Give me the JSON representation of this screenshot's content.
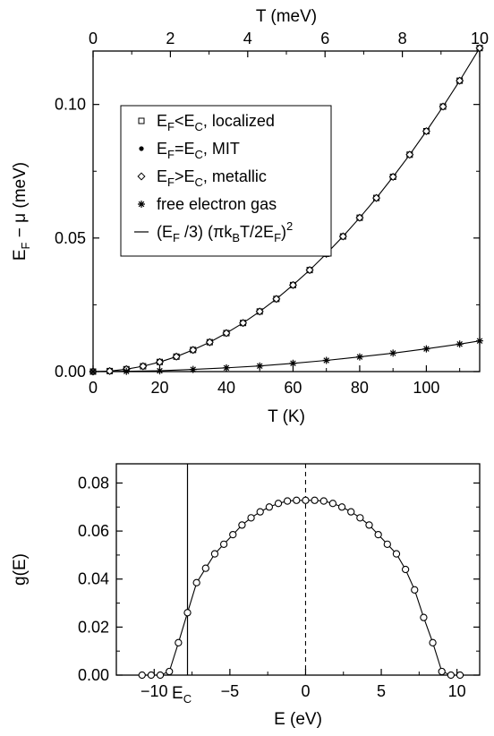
{
  "chart_data": [
    {
      "type": "line",
      "xlabel": "T (K)",
      "xlabel_top": "T (meV)",
      "ylabel": "E_F − μ (meV)",
      "xlim": [
        0,
        116
      ],
      "xlim_top": [
        0,
        10
      ],
      "ylim": [
        0,
        0.12
      ],
      "x_ticks": [
        "0",
        "20",
        "40",
        "60",
        "80",
        "100"
      ],
      "x_ticks_top": [
        "0",
        "2",
        "4",
        "6",
        "8",
        "10"
      ],
      "y_ticks": [
        "0.00",
        "0.05",
        "0.10"
      ],
      "legend_position": "top-left",
      "legend": [
        {
          "label": "E_F<E_C, localized",
          "marker": "open-square"
        },
        {
          "label": "E_F=E_C, MIT",
          "marker": "filled-dot"
        },
        {
          "label": "E_F>E_C, metallic",
          "marker": "open-diamond"
        },
        {
          "label": "free electron gas",
          "marker": "asterisk"
        },
        {
          "label": "(E_F /3) (πk_BT/2E_F)^2",
          "marker": "line"
        }
      ],
      "series": [
        {
          "name": "E_F<E_C, localized",
          "marker": "open-square",
          "x": [
            0,
            5,
            10,
            15,
            20,
            25,
            30,
            35,
            40,
            45,
            50,
            55,
            60,
            65,
            70,
            75,
            80,
            85,
            90,
            95,
            100,
            105,
            110,
            116
          ],
          "y": [
            0,
            0.0002,
            0.0009,
            0.002,
            0.0036,
            0.0056,
            0.0081,
            0.011,
            0.0144,
            0.0182,
            0.0225,
            0.0272,
            0.0324,
            0.038,
            0.0441,
            0.0506,
            0.0576,
            0.065,
            0.0729,
            0.0812,
            0.09,
            0.0992,
            0.1089,
            0.1211
          ]
        },
        {
          "name": "E_F=E_C, MIT",
          "marker": "filled-dot",
          "x": [
            0,
            5,
            10,
            15,
            20,
            25,
            30,
            35,
            40,
            45,
            50,
            55,
            60,
            65,
            70,
            75,
            80,
            85,
            90,
            95,
            100,
            105,
            110,
            116
          ],
          "y": [
            0,
            0.0002,
            0.0009,
            0.002,
            0.0036,
            0.0056,
            0.0081,
            0.011,
            0.0144,
            0.0182,
            0.0225,
            0.0272,
            0.0324,
            0.038,
            0.0441,
            0.0506,
            0.0576,
            0.065,
            0.0729,
            0.0812,
            0.09,
            0.0992,
            0.1089,
            0.1211
          ]
        },
        {
          "name": "E_F>E_C, metallic",
          "marker": "open-diamond",
          "x": [
            0,
            5,
            10,
            15,
            20,
            25,
            30,
            35,
            40,
            45,
            50,
            55,
            60,
            65,
            70,
            75,
            80,
            85,
            90,
            95,
            100,
            105,
            110,
            116
          ],
          "y": [
            0,
            0.0002,
            0.0009,
            0.002,
            0.0036,
            0.0056,
            0.0081,
            0.011,
            0.0144,
            0.0182,
            0.0225,
            0.0272,
            0.0324,
            0.038,
            0.0441,
            0.0506,
            0.0576,
            0.065,
            0.0729,
            0.0812,
            0.09,
            0.0992,
            0.1089,
            0.1211
          ]
        },
        {
          "name": "free electron gas",
          "marker": "asterisk",
          "x": [
            0,
            10,
            20,
            30,
            40,
            50,
            60,
            70,
            80,
            90,
            100,
            110,
            116
          ],
          "y": [
            0,
            0.0001,
            0.0003,
            0.0008,
            0.0014,
            0.0021,
            0.0031,
            0.0042,
            0.0055,
            0.0069,
            0.0085,
            0.0103,
            0.0115
          ]
        },
        {
          "name": "(E_F /3) (πk_BT/2E_F)^2",
          "marker": "line",
          "x": [
            0,
            10,
            20,
            30,
            40,
            50,
            60,
            70,
            80,
            90,
            100,
            110,
            116
          ],
          "y": [
            0,
            0.0001,
            0.0003,
            0.0008,
            0.0014,
            0.0021,
            0.0031,
            0.0042,
            0.0055,
            0.0069,
            0.0085,
            0.0103,
            0.0115
          ]
        }
      ]
    },
    {
      "type": "line",
      "xlabel": "E (eV)",
      "ylabel": "g(E)",
      "xlim": [
        -12.5,
        11.5
      ],
      "ylim": [
        0,
        0.088
      ],
      "x_ticks": [
        "−10",
        "−5",
        "0",
        "5",
        "10"
      ],
      "y_ticks": [
        "0.00",
        "0.02",
        "0.04",
        "0.06",
        "0.08"
      ],
      "vline_solid_x": -7.8,
      "vline_solid_label": "E_C",
      "vline_dashed_x": 0,
      "series": [
        {
          "name": "g(E)",
          "marker": "open-circle",
          "x": [
            -10.8,
            -10.2,
            -9.6,
            -9.0,
            -8.4,
            -7.8,
            -7.2,
            -6.6,
            -6.0,
            -5.4,
            -4.8,
            -4.2,
            -3.6,
            -3.0,
            -2.4,
            -1.8,
            -1.2,
            -0.6,
            0.0,
            0.6,
            1.2,
            1.8,
            2.4,
            3.0,
            3.6,
            4.2,
            4.8,
            5.4,
            6.0,
            6.6,
            7.2,
            7.8,
            8.4,
            9.0,
            9.6,
            10.2
          ],
          "y": [
            0.0,
            0.0,
            0.0,
            0.0015,
            0.0135,
            0.026,
            0.0385,
            0.0445,
            0.0505,
            0.0545,
            0.0585,
            0.0625,
            0.0655,
            0.068,
            0.07,
            0.0715,
            0.0725,
            0.0728,
            0.0728,
            0.0728,
            0.0725,
            0.0715,
            0.07,
            0.068,
            0.0655,
            0.0625,
            0.0585,
            0.0545,
            0.0505,
            0.044,
            0.0355,
            0.024,
            0.0135,
            0.0015,
            0.0,
            0.0
          ]
        }
      ]
    }
  ]
}
